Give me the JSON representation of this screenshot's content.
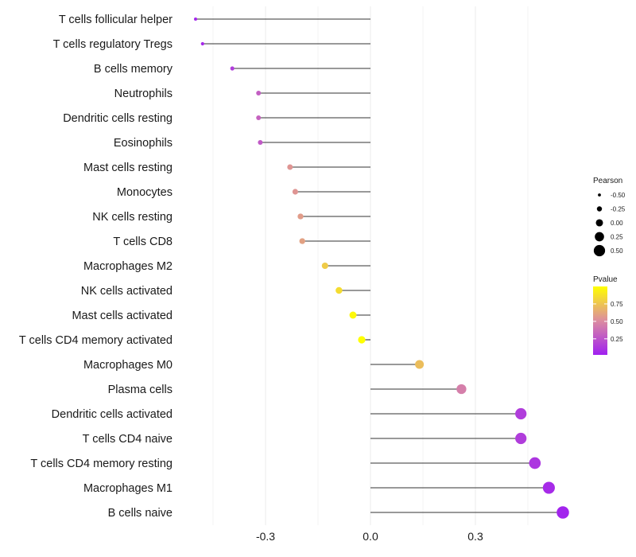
{
  "chart_data": {
    "type": "lollipop",
    "title": "",
    "xlabel": "",
    "ylabel": "",
    "xlim": [
      -0.52,
      0.56
    ],
    "xticks": [
      "-0.3",
      "0.0",
      "0.3"
    ],
    "xtick_values": [
      -0.3,
      0.0,
      0.3
    ],
    "grid": true,
    "categories": [
      "T cells follicular helper",
      "T cells regulatory  Tregs",
      "B cells memory",
      "Neutrophils",
      "Dendritic cells resting",
      "Eosinophils",
      "Mast cells resting",
      "Monocytes",
      "NK cells resting",
      "T cells CD8",
      "Macrophages M2",
      "NK cells activated",
      "Mast cells activated",
      "T cells CD4 memory activated",
      "Macrophages M0",
      "Plasma cells",
      "Dendritic cells activated",
      "T cells CD4 naive",
      "T cells CD4 memory resting",
      "Macrophages M1",
      "B cells naive"
    ],
    "values": [
      -0.5,
      -0.48,
      -0.395,
      -0.32,
      -0.32,
      -0.315,
      -0.23,
      -0.215,
      -0.2,
      -0.195,
      -0.13,
      -0.09,
      -0.05,
      -0.025,
      0.14,
      0.26,
      0.43,
      0.43,
      0.47,
      0.51,
      0.55
    ],
    "pvalues": [
      0.05,
      0.06,
      0.15,
      0.3,
      0.32,
      0.28,
      0.55,
      0.55,
      0.58,
      0.6,
      0.78,
      0.85,
      0.97,
      1.0,
      0.72,
      0.45,
      0.15,
      0.15,
      0.12,
      0.07,
      0.04
    ],
    "legend": {
      "size_title": "Pearson",
      "size_labels": [
        "-0.50",
        "-0.25",
        "0.00",
        "0.25",
        "0.50"
      ],
      "size_values": [
        -0.5,
        -0.25,
        0.0,
        0.25,
        0.5
      ],
      "color_title": "Pvalue",
      "color_labels": [
        "0.75",
        "0.50",
        "0.25"
      ],
      "color_values": [
        0.75,
        0.5,
        0.25
      ],
      "color_range": [
        0.02,
        1.0
      ],
      "colors": {
        "low": "#a020f0",
        "mid": "#dc8ca0",
        "high": "#ffff00"
      },
      "placement": "right"
    }
  }
}
